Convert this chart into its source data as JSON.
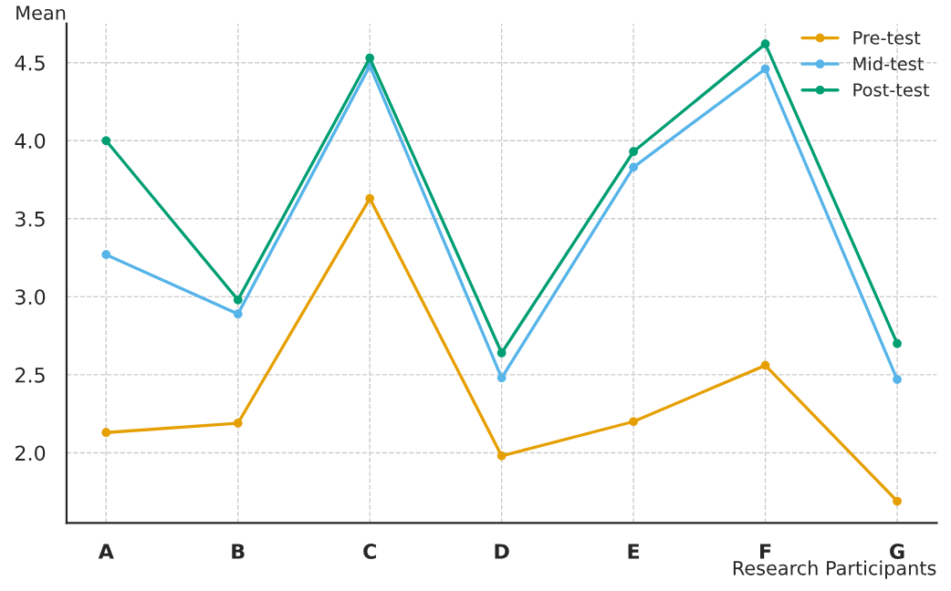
{
  "chart_data": {
    "type": "line",
    "xlabel": "Research Participants",
    "ylabel": "Mean",
    "categories": [
      "A",
      "B",
      "C",
      "D",
      "E",
      "F",
      "G"
    ],
    "series": [
      {
        "name": "Pre-test",
        "color": "#e69f00",
        "values": [
          2.13,
          2.19,
          3.63,
          1.98,
          2.2,
          2.56,
          1.69
        ]
      },
      {
        "name": "Mid-test",
        "color": "#56b4e9",
        "values": [
          3.27,
          2.89,
          4.48,
          2.48,
          3.83,
          4.46,
          2.47
        ]
      },
      {
        "name": "Post-test",
        "color": "#009e73",
        "values": [
          4.0,
          2.98,
          4.53,
          2.64,
          3.93,
          4.62,
          2.7
        ]
      }
    ],
    "ylim": [
      1.55,
      4.75
    ],
    "yticks": [
      {
        "value": 2,
        "label": "2.0"
      },
      2.5,
      {
        "value": 3,
        "label": "3.0"
      },
      3.5,
      {
        "value": 4,
        "label": "4.0"
      },
      4.5
    ],
    "grid": true,
    "legend": "top right",
    "marker": "circle",
    "line_style": "solid"
  }
}
